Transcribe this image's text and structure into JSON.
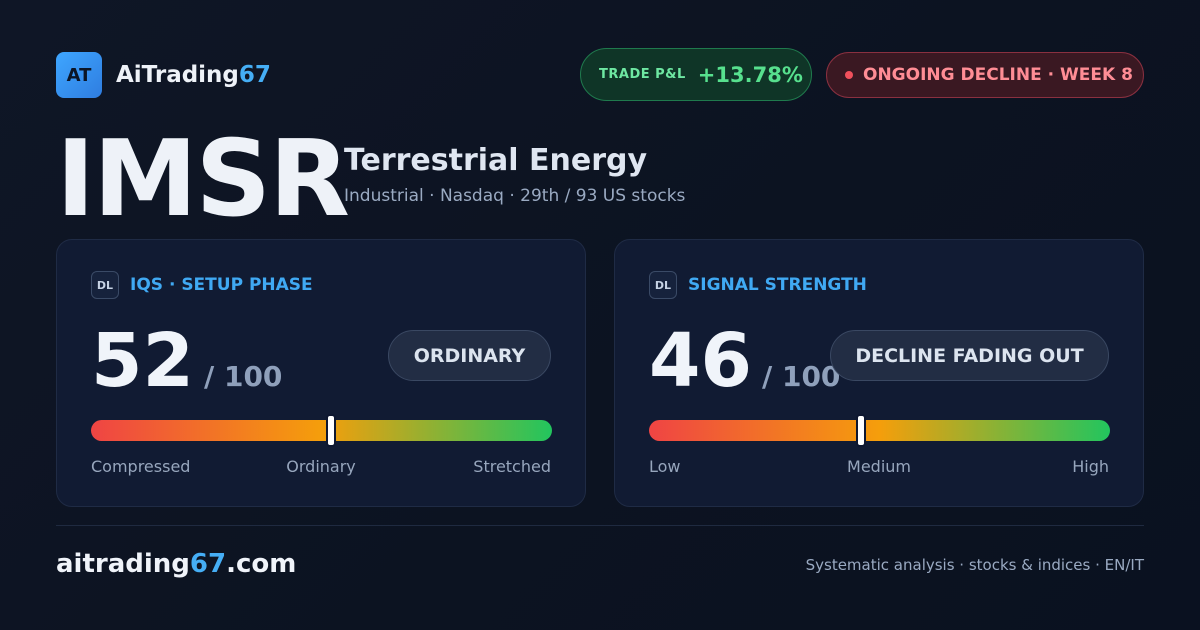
{
  "brand": {
    "logo_text": "AT",
    "name_main": "AiTrading",
    "name_accent": "67"
  },
  "pills": {
    "pnl_label": "TRADE P&L",
    "pnl_value": "+13.78%",
    "trend_label": "ONGOING DECLINE · WEEK 8"
  },
  "stock": {
    "ticker": "IMSR",
    "company": "Terrestrial Energy",
    "meta": "Industrial · Nasdaq · 29th / 93 US stocks"
  },
  "cards": [
    {
      "badge": "DL",
      "title": "IQS · SETUP PHASE",
      "score": "52",
      "max": "/ 100",
      "tag": "ORDINARY",
      "level": 52,
      "scale": [
        "Compressed",
        "Ordinary",
        "Stretched"
      ]
    },
    {
      "badge": "DL",
      "title": "SIGNAL STRENGTH",
      "score": "46",
      "max": "/ 100",
      "tag": "DECLINE FADING OUT",
      "level": 46,
      "scale": [
        "Low",
        "Medium",
        "High"
      ]
    }
  ],
  "footer": {
    "url_main": "aitrading",
    "url_accent": "67",
    "url_tld": ".com",
    "tagline": "Systematic analysis · stocks & indices · EN/IT"
  },
  "colors": {
    "accent": "#45aef5",
    "positive": "#57e08e",
    "negative": "#ff8d95",
    "bar_low": "#ef4444",
    "bar_mid": "#f59e0b",
    "bar_high": "#22c55e"
  }
}
